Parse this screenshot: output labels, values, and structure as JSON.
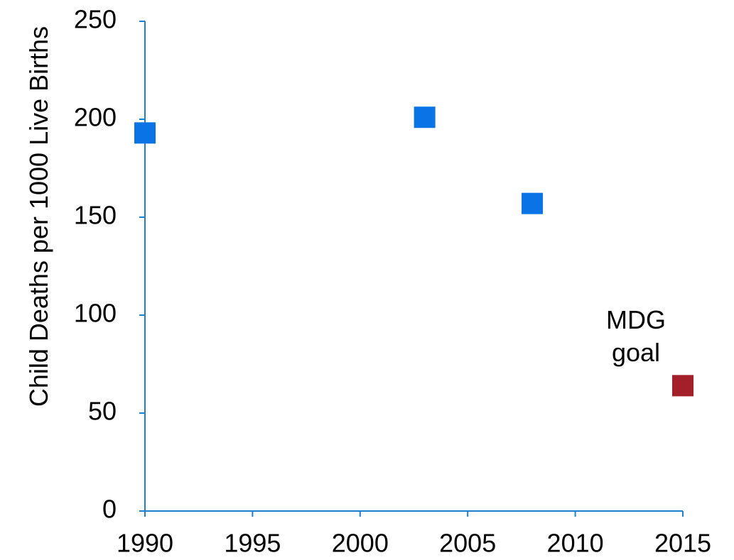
{
  "chart_data": {
    "type": "scatter",
    "y_label": "Child Deaths per 1000 Live Births",
    "series": [
      {
        "color": "#0a74e6",
        "x": [
          1990,
          2003,
          2008
        ],
        "values": [
          193,
          201,
          157
        ]
      },
      {
        "color": "#a3202a",
        "x": [
          2015
        ],
        "values": [
          64
        ]
      }
    ],
    "annotations": [
      {
        "text": "MDG goal",
        "x": 2015,
        "y": 64
      }
    ],
    "xlim": [
      1990,
      2015
    ],
    "xticks": [
      1990,
      1995,
      2000,
      2005,
      2010,
      2015
    ],
    "ylim": [
      0,
      250
    ],
    "yticks": [
      0,
      50,
      100,
      150,
      200,
      250
    ],
    "grid": false,
    "axis_color": "#1f7fd0"
  }
}
